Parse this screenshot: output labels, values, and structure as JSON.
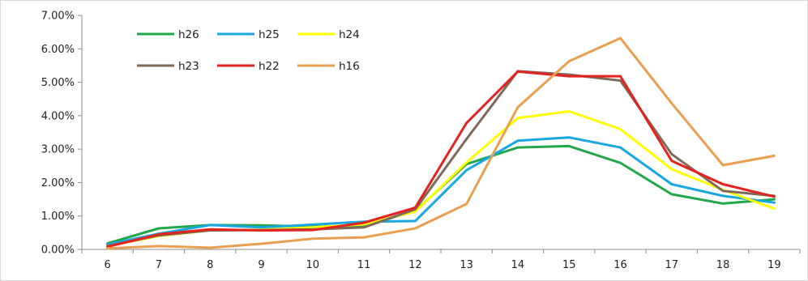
{
  "chart_data": {
    "type": "line",
    "title": "",
    "xlabel": "",
    "ylabel": "",
    "categories": [
      "6",
      "7",
      "8",
      "9",
      "10",
      "11",
      "12",
      "13",
      "14",
      "15",
      "16",
      "17",
      "18",
      "19"
    ],
    "ylim": [
      0,
      0.07
    ],
    "y_ticks": [
      "0.00%",
      "1.00%",
      "2.00%",
      "3.00%",
      "4.00%",
      "5.00%",
      "6.00%",
      "7.00%"
    ],
    "grid": false,
    "legend_position": "top-left",
    "series": [
      {
        "name": "h26",
        "color": "#22a84a",
        "values": [
          0.0018,
          0.0063,
          0.0073,
          0.0072,
          0.0068,
          0.007,
          0.0115,
          0.0255,
          0.0305,
          0.0309,
          0.0259,
          0.0165,
          0.0137,
          0.015
        ]
      },
      {
        "name": "h25",
        "color": "#1aa7e0",
        "values": [
          0.0015,
          0.0047,
          0.0073,
          0.0066,
          0.0074,
          0.0083,
          0.0085,
          0.0237,
          0.0325,
          0.0335,
          0.0305,
          0.0195,
          0.016,
          0.014
        ]
      },
      {
        "name": "h24",
        "color": "#ffff00",
        "values": [
          0.001,
          0.004,
          0.0057,
          0.0059,
          0.0066,
          0.0075,
          0.0113,
          0.026,
          0.0393,
          0.0413,
          0.036,
          0.024,
          0.0178,
          0.0122
        ]
      },
      {
        "name": "h23",
        "color": "#7f6a5a",
        "values": [
          0.001,
          0.0042,
          0.0057,
          0.0058,
          0.006,
          0.0066,
          0.012,
          0.033,
          0.0533,
          0.0523,
          0.0505,
          0.0285,
          0.0175,
          0.016
        ]
      },
      {
        "name": "h22",
        "color": "#e3231f",
        "values": [
          0.0008,
          0.0045,
          0.006,
          0.0057,
          0.0058,
          0.008,
          0.0125,
          0.0378,
          0.0532,
          0.0518,
          0.0518,
          0.0265,
          0.0195,
          0.0158
        ]
      },
      {
        "name": "h16",
        "color": "#e8a050",
        "values": [
          0.0003,
          0.001,
          0.0005,
          0.0017,
          0.0032,
          0.0036,
          0.0063,
          0.0136,
          0.0425,
          0.0563,
          0.0632,
          0.0437,
          0.0252,
          0.028
        ]
      }
    ]
  }
}
